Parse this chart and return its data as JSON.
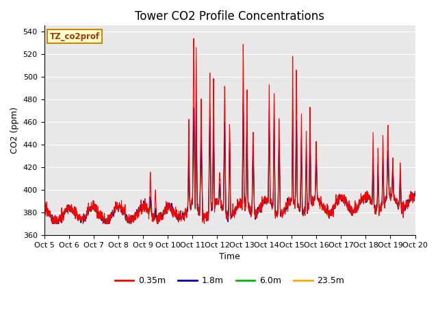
{
  "title": "Tower CO2 Profile Concentrations",
  "xlabel": "Time",
  "ylabel": "CO2 (ppm)",
  "watermark": "TZ_co2prof",
  "ylim": [
    360,
    545
  ],
  "yticks": [
    360,
    380,
    400,
    420,
    440,
    460,
    480,
    500,
    520,
    540
  ],
  "xtick_labels": [
    "Oct 5",
    "Oct 6",
    "Oct 7",
    "Oct 8",
    "Oct 9",
    "Oct 10",
    "Oct 11",
    "Oct 12",
    "Oct 13",
    "Oct 14",
    "Oct 15",
    "Oct 16",
    "Oct 17",
    "Oct 18",
    "Oct 19",
    "Oct 20"
  ],
  "series_colors": [
    "#ff0000",
    "#0000bb",
    "#00bb00",
    "#ffaa00"
  ],
  "series_labels": [
    "0.35m",
    "1.8m",
    "6.0m",
    "23.5m"
  ],
  "plot_bg_color": "#e8e8e8",
  "line_width": 0.8,
  "n_points": 1440,
  "title_fontsize": 12,
  "axis_fontsize": 9,
  "tick_fontsize": 8
}
